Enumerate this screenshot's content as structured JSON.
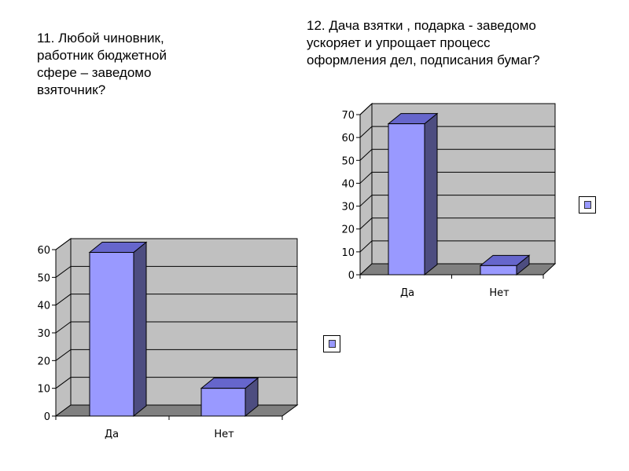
{
  "questions": {
    "q11": "11. Любой чиновник,\nработник бюджетной\nсфере – заведомо\nвзяточник?",
    "q12": "12. Дача взятки , подарка - заведомо\nускоряет  и упрощает процесс\nоформления дел, подписания бумаг?"
  },
  "colors": {
    "bar_front": "#9999ff",
    "bar_top": "#6666cc",
    "bar_side": "#4d4d80",
    "wall": "#c0c0c0",
    "floor": "#808080"
  },
  "chart_data": [
    {
      "type": "bar",
      "categories": [
        "Да",
        "Нет"
      ],
      "values": [
        59,
        10
      ],
      "ylim": [
        0,
        60
      ],
      "yticks": [
        0,
        10,
        20,
        30,
        40,
        50,
        60
      ],
      "grid": true,
      "legend": "right"
    },
    {
      "type": "bar",
      "categories": [
        "Да",
        "Нет"
      ],
      "values": [
        66,
        4
      ],
      "ylim": [
        0,
        70
      ],
      "yticks": [
        0,
        10,
        20,
        30,
        40,
        50,
        60,
        70
      ],
      "grid": true,
      "legend": "right"
    }
  ]
}
